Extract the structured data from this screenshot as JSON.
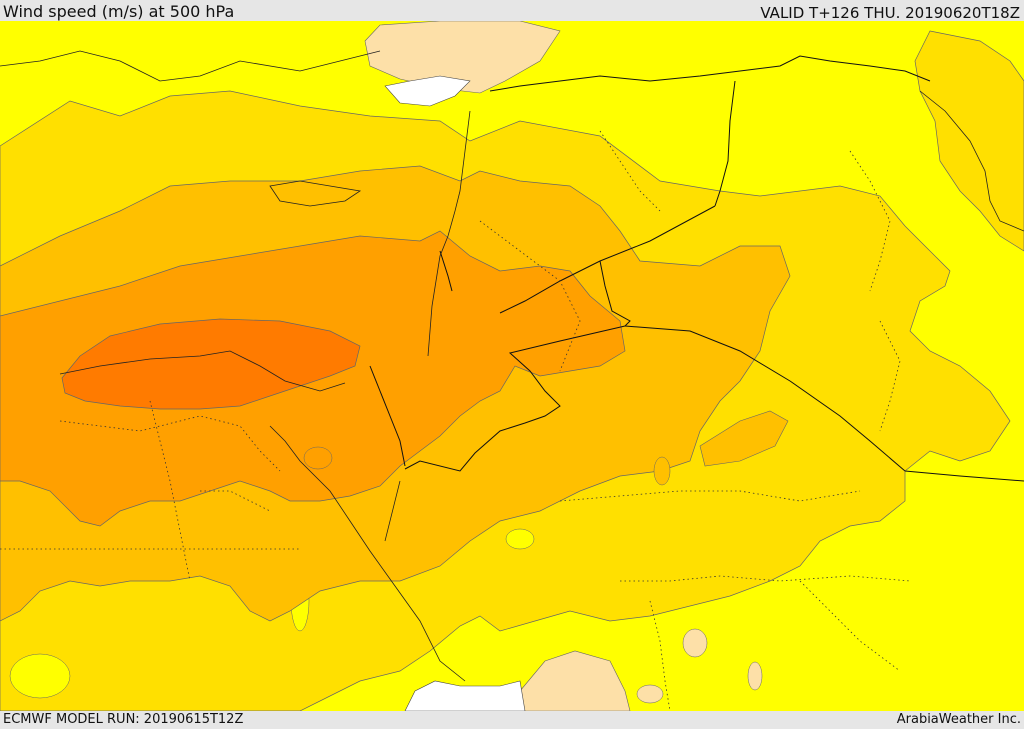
{
  "header": {
    "title": "Wind speed (m/s) at 500 hPa",
    "valid": "VALID T+126 THU. 20190620T18Z"
  },
  "footer": {
    "model_run": "ECMWF MODEL RUN: 20190615T12Z",
    "credit": "ArabiaWeather Inc."
  },
  "colors": {
    "sea": "#ffffff",
    "band_lightest": "#fde0a8",
    "band_1": "#ffff00",
    "band_2": "#ffe000",
    "band_3": "#ffc000",
    "band_4": "#ffa000",
    "band_5": "#ff7b00"
  }
}
